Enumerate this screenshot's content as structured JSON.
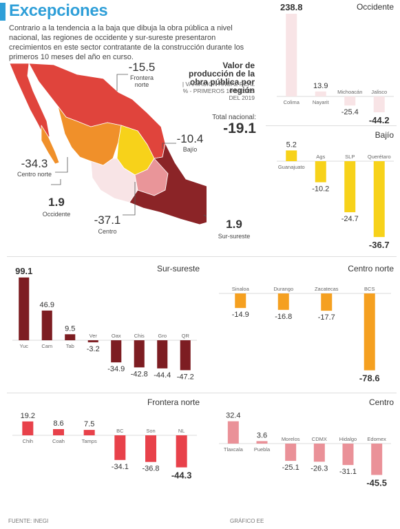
{
  "header": {
    "title": "Excepciones",
    "intro": "Contrario a la tendencia a la baja que dibuja la obra pública a nivel nacional, las regiones de occidente y sur-sureste presentaron crecimientos en este sector contratante de la construcción durante los primeros 10 meses del año en curso."
  },
  "map": {
    "title": "Valor de producción de la obra pública por región",
    "subtitle": "| VARIACIÓN ANUAL REAL % - PRIMEROS 10 MESES DEL 2019",
    "total_label": "Total nacional:",
    "total_value": "-19.1",
    "regions": {
      "frontera_norte": {
        "value": "-15.5",
        "name": "Frontera norte",
        "color": "#e0443c"
      },
      "bajio": {
        "value": "-10.4",
        "name": "Bajío",
        "color": "#f7d21a"
      },
      "centro_norte": {
        "value": "-34.3",
        "name": "Centro norte",
        "color": "#f0902a"
      },
      "occidente": {
        "value": "1.9",
        "name": "Occidente",
        "color": "#f8e4e6"
      },
      "centro": {
        "value": "-37.1",
        "name": "Centro",
        "color": "#e99599"
      },
      "sur_sureste": {
        "value": "1.9",
        "name": "Sur-sureste",
        "color": "#8b2427"
      }
    }
  },
  "chart_data": [
    {
      "type": "bar",
      "title": "Occidente",
      "color": "#f8e4e6",
      "categories": [
        "Colima",
        "Nayarit",
        "Michoacán",
        "Jalisco"
      ],
      "values": [
        238.8,
        13.9,
        -25.4,
        -44.2
      ],
      "labels": [
        "238.8",
        "13.9",
        "-25.4",
        "-44.2"
      ],
      "highlight": [
        0,
        3
      ]
    },
    {
      "type": "bar",
      "title": "Bajío",
      "color": "#f7d21a",
      "categories": [
        "Guanajuato",
        "Ags",
        "SLP",
        "Querétaro"
      ],
      "values": [
        5.2,
        -10.2,
        -24.7,
        -36.7
      ],
      "labels": [
        "5.2",
        "-10.2",
        "-24.7",
        "-36.7"
      ],
      "highlight": [
        3
      ]
    },
    {
      "type": "bar",
      "title": "Sur-sureste",
      "color": "#7d1d22",
      "categories": [
        "Yuc",
        "Cam",
        "Tab",
        "Ver",
        "Oax",
        "Chis",
        "Gro",
        "QR"
      ],
      "values": [
        99.1,
        46.9,
        9.5,
        -3.2,
        -34.9,
        -42.8,
        -44.4,
        -47.2
      ],
      "labels": [
        "99.1",
        "46.9",
        "9.5",
        "-3.2",
        "-34.9",
        "-42.8",
        "-44.4",
        "-47.2"
      ],
      "highlight": [
        0
      ]
    },
    {
      "type": "bar",
      "title": "Centro norte",
      "color": "#f5a020",
      "categories": [
        "Sinaloa",
        "Durango",
        "Zacatecas",
        "BCS"
      ],
      "values": [
        -14.9,
        -16.8,
        -17.7,
        -78.6
      ],
      "labels": [
        "-14.9",
        "-16.8",
        "-17.7",
        "-78.6"
      ],
      "highlight": [
        3
      ]
    },
    {
      "type": "bar",
      "title": "Frontera norte",
      "color": "#e8414a",
      "categories": [
        "Chih",
        "Coah",
        "Tamps",
        "BC",
        "Son",
        "NL"
      ],
      "values": [
        19.2,
        8.6,
        7.5,
        -34.1,
        -36.8,
        -44.3
      ],
      "labels": [
        "19.2",
        "8.6",
        "7.5",
        "-34.1",
        "-36.8",
        "-44.3"
      ],
      "highlight": [
        5
      ]
    },
    {
      "type": "bar",
      "title": "Centro",
      "color": "#ea9198",
      "categories": [
        "Tlaxcala",
        "Puebla",
        "Morelos",
        "CDMX",
        "Hidalgo",
        "Edomex"
      ],
      "values": [
        32.4,
        3.6,
        -25.1,
        -26.3,
        -31.1,
        -45.5
      ],
      "labels": [
        "32.4",
        "3.6",
        "-25.1",
        "-26.3",
        "-31.1",
        "-45.5"
      ],
      "highlight": [
        5
      ]
    }
  ],
  "footer": {
    "source": "FUENTE: INEGI",
    "credit": "GRÁFICO EE"
  }
}
